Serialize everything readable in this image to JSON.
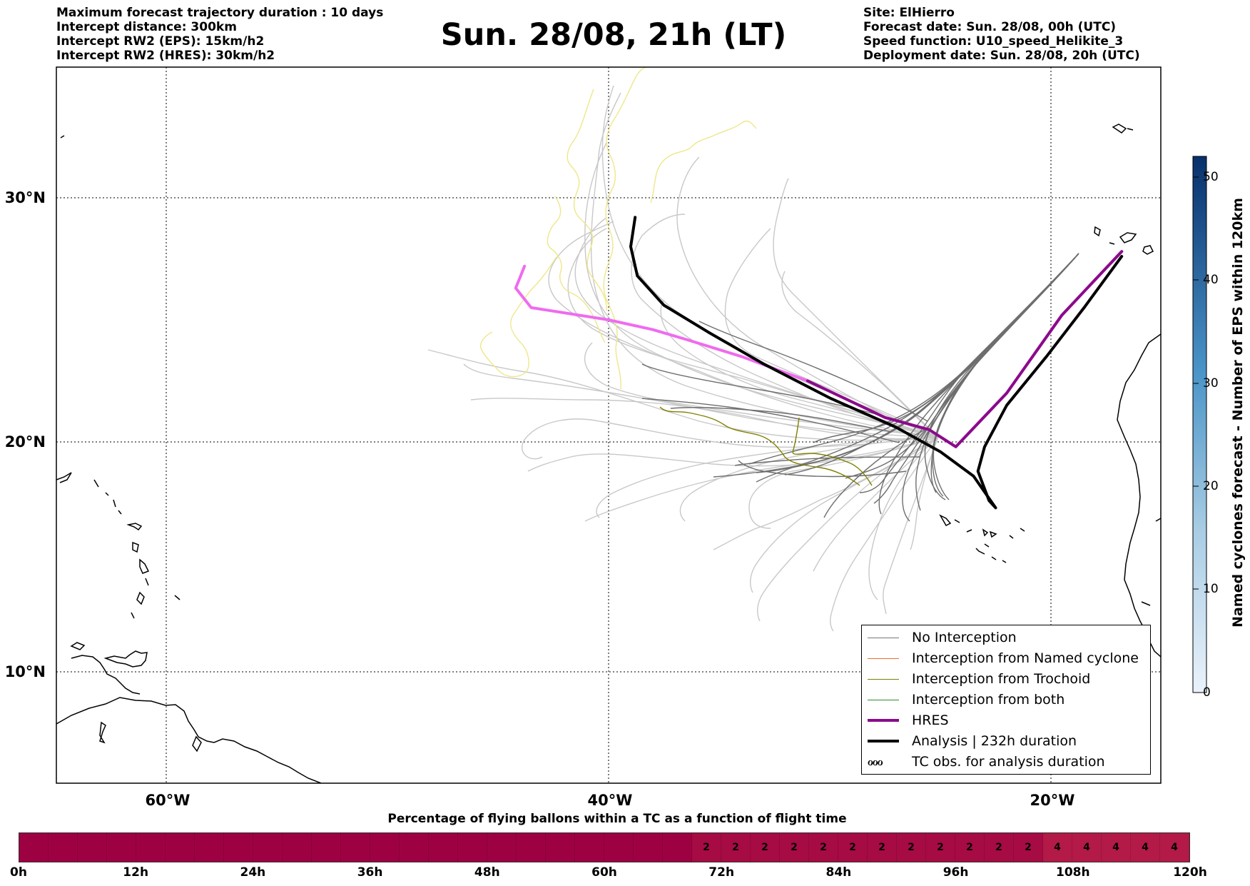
{
  "title": "Sun. 28/08, 21h (LT)",
  "header_left": [
    "Maximum forecast trajectory duration : 10 days",
    "Intercept distance: 300km",
    "Intercept RW2 (EPS):  15km/h2",
    "Intercept RW2 (HRES): 30km/h2"
  ],
  "header_right": [
    "Site: ElHierro",
    "Forecast date: Sun. 28/08, 00h (UTC)",
    "Speed function: U10_speed_Helikite_3",
    "Deployment date: Sun. 28/08, 20h (UTC)"
  ],
  "map": {
    "lat_labels": [
      "30°N",
      "20°N",
      "10°N"
    ],
    "lon_labels": [
      "60°W",
      "40°W",
      "20°W"
    ],
    "lon_range": [
      -65,
      -15
    ],
    "lat_range": [
      5,
      35
    ],
    "grid": "dotted"
  },
  "legend": {
    "placement": "lower-right",
    "items": [
      {
        "label": "No Interception",
        "color": "#777777"
      },
      {
        "label": "Interception from Named cyclone",
        "color": "#f26a2a"
      },
      {
        "label": "Interception from Trochoid",
        "color": "#808000"
      },
      {
        "label": "Interception from both",
        "color": "#2e8b2e"
      },
      {
        "label": "HRES",
        "color": "#8b0a8b"
      },
      {
        "label": "Analysis | 232h duration",
        "color": "#000000"
      }
    ],
    "tc_obs_glyph": "ℴℴℴ",
    "tc_obs_label": "TC obs. for analysis duration"
  },
  "colorbar": {
    "label": "Named cyclones forecast - Number of EPS within 120km",
    "ticks": [
      "0",
      "10",
      "20",
      "30",
      "40",
      "50"
    ],
    "range": [
      0,
      52
    ],
    "colors": [
      "#e8f1fa",
      "#08306b"
    ]
  },
  "time_bar": {
    "title": "Percentage of flying ballons within a TC as a function of flight time",
    "labels": [
      "0h",
      "12h",
      "24h",
      "36h",
      "48h",
      "60h",
      "72h",
      "84h",
      "96h",
      "108h",
      "120h"
    ],
    "segments": [
      "",
      "",
      "",
      "",
      "",
      "",
      "",
      "",
      "",
      "",
      "",
      "",
      "",
      "",
      "",
      "",
      "",
      "",
      "",
      "",
      "",
      "",
      "",
      "2",
      "2",
      "2",
      "2",
      "2",
      "2",
      "2",
      "2",
      "2",
      "2",
      "2",
      "2",
      "4",
      "4",
      "4",
      "4",
      "4"
    ],
    "color_zero": "#9e0142",
    "color_2": "#a60b43",
    "color_4": "#b31a47"
  },
  "chart_data": {
    "type": "line",
    "title": "Sun. 28/08, 21h (LT)",
    "xlabel": "",
    "ylabel": "",
    "xlim": [
      -65,
      -15
    ],
    "ylim": [
      5,
      35
    ],
    "x_unit": "longitude (°W negative)",
    "y_unit": "latitude (°N)",
    "series": [
      {
        "name": "HRES",
        "points": [
          [
            -16.8,
            27.8
          ],
          [
            -19.5,
            25.2
          ],
          [
            -22.0,
            22.0
          ],
          [
            -24.3,
            19.8
          ],
          [
            -25.5,
            20.5
          ],
          [
            -27.5,
            21.0
          ],
          [
            -31.0,
            22.5
          ],
          [
            -34.0,
            23.5
          ],
          [
            -36.5,
            24.2
          ],
          [
            -38.0,
            24.6
          ],
          [
            -40.0,
            25.0
          ],
          [
            -43.5,
            25.5
          ],
          [
            -44.2,
            26.3
          ],
          [
            -43.8,
            27.2
          ]
        ]
      },
      {
        "name": "Analysis | 232h duration",
        "points": [
          [
            -16.8,
            27.6
          ],
          [
            -18.5,
            25.5
          ],
          [
            -20.2,
            23.5
          ],
          [
            -22.0,
            21.5
          ],
          [
            -23.0,
            19.8
          ],
          [
            -23.3,
            18.8
          ],
          [
            -22.8,
            17.6
          ],
          [
            -22.5,
            17.3
          ],
          [
            -23.5,
            18.6
          ],
          [
            -25.0,
            19.6
          ],
          [
            -27.0,
            20.6
          ],
          [
            -30.0,
            21.8
          ],
          [
            -33.0,
            23.2
          ],
          [
            -35.5,
            24.5
          ],
          [
            -37.5,
            25.6
          ],
          [
            -38.7,
            26.8
          ],
          [
            -39.0,
            28.0
          ],
          [
            -38.8,
            29.2
          ]
        ]
      }
    ]
  }
}
